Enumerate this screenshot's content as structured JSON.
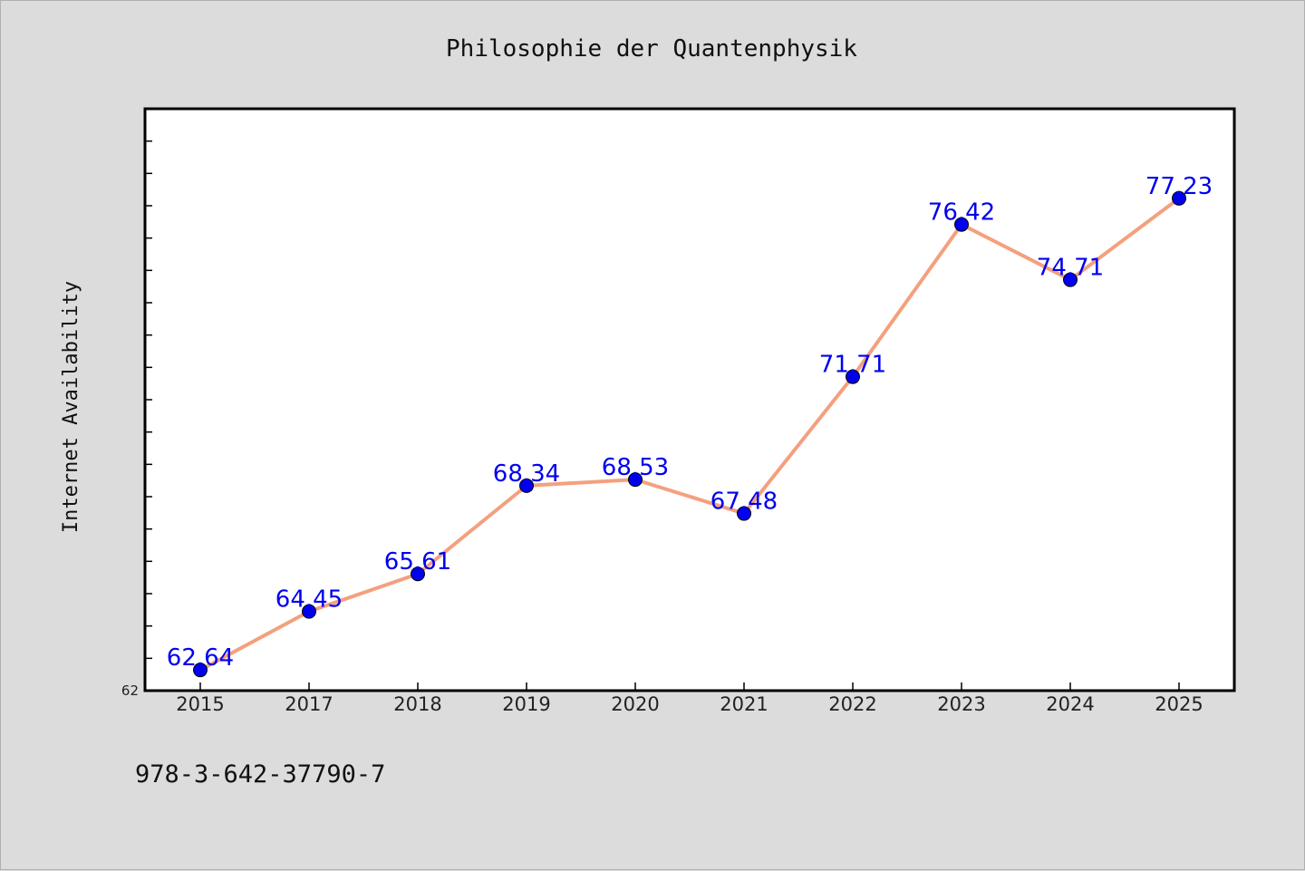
{
  "chart_data": {
    "type": "line",
    "title": "Philosophie der Quantenphysik",
    "xlabel": "",
    "ylabel": "Internet Availability",
    "categories": [
      "2015",
      "2017",
      "2018",
      "2019",
      "2020",
      "2021",
      "2022",
      "2023",
      "2024",
      "2025"
    ],
    "series": [
      {
        "values": [
          62.64,
          64.45,
          65.61,
          68.34,
          68.53,
          67.48,
          71.71,
          76.42,
          74.71,
          77.23
        ],
        "data_labels": [
          "62.64",
          "64.45",
          "65.61",
          "68.34",
          "68.53",
          "67.48",
          "71.71",
          "76.42",
          "74.71",
          "77.23"
        ]
      }
    ],
    "ylim": [
      62,
      80
    ],
    "y_tick_labels": [
      "62"
    ],
    "grid": false,
    "line_color": "#f4a07e",
    "marker_color": "#0000ee",
    "label_color": "#0000ee"
  },
  "footer": {
    "isbn": "978-3-642-37790-7"
  }
}
